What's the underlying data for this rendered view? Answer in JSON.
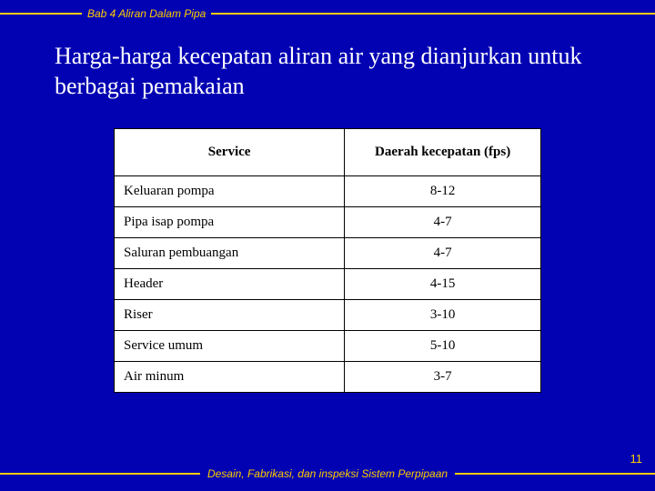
{
  "header": {
    "chapter": "Bab 4 Aliran Dalam Pipa"
  },
  "title": "Harga-harga kecepatan aliran air yang dianjurkan untuk berbagai pemakaian",
  "table": {
    "headers": {
      "service": "Service",
      "range": "Daerah kecepatan (fps)"
    },
    "rows": [
      {
        "service": "Keluaran pompa",
        "range": "8-12"
      },
      {
        "service": "Pipa isap pompa",
        "range": "4-7"
      },
      {
        "service": "Saluran pembuangan",
        "range": "4-7"
      },
      {
        "service": "Header",
        "range": "4-15"
      },
      {
        "service": "Riser",
        "range": "3-10"
      },
      {
        "service": "Service umum",
        "range": "5-10"
      },
      {
        "service": "Air minum",
        "range": "3-7"
      }
    ]
  },
  "footer": {
    "text": "Desain, Fabrikasi, dan inspeksi Sistem Perpipaan",
    "page": "11"
  },
  "colors": {
    "background": "#0202b3",
    "accent": "#ffcc00",
    "title_text": "#ffffff",
    "table_bg": "#ffffff",
    "table_border": "#000000"
  }
}
